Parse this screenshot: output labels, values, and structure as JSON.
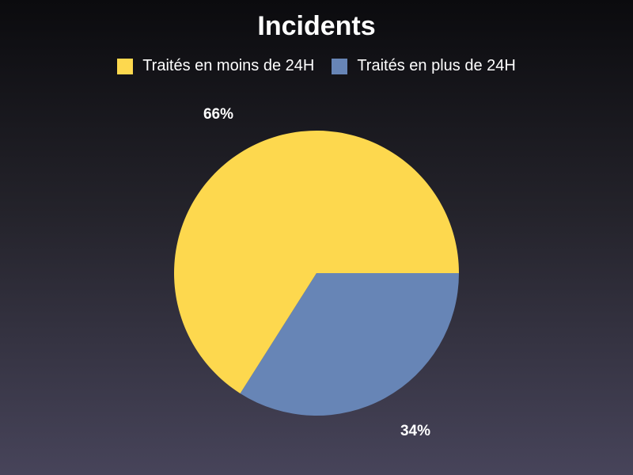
{
  "chart_data": {
    "type": "pie",
    "title": "Incidents",
    "legend_position": "top",
    "slices": [
      {
        "label": "Traités en moins de 24H",
        "value": 66,
        "display": "66%",
        "color": "#fdd84e"
      },
      {
        "label": "Traités en plus de 24H",
        "value": 34,
        "display": "34%",
        "color": "#6785b6"
      }
    ]
  }
}
